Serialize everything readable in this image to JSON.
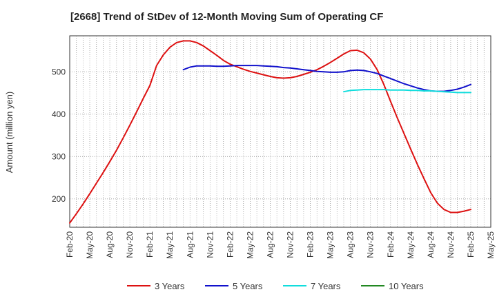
{
  "chart_data": {
    "type": "line",
    "title": "[2668]  Trend of StDev of 12-Month Moving Sum of Operating CF",
    "ylabel": "Amount (million yen)",
    "xlabel": "",
    "x_tick_labels": [
      "Feb-20",
      "May-20",
      "Aug-20",
      "Nov-20",
      "Feb-21",
      "May-21",
      "Aug-21",
      "Nov-21",
      "Feb-22",
      "May-22",
      "Aug-22",
      "Nov-22",
      "Feb-23",
      "May-23",
      "Aug-23",
      "Nov-23",
      "Feb-24",
      "May-24",
      "Aug-24",
      "Nov-24",
      "Feb-25",
      "May-25"
    ],
    "y_ticks": [
      200,
      300,
      400,
      500
    ],
    "ylim": [
      133,
      585
    ],
    "grid": true,
    "legend_position": "bottom",
    "series": [
      {
        "name": "3 Years",
        "color": "#dd1111",
        "x": [
          "2020-02",
          "2020-03",
          "2020-04",
          "2020-05",
          "2020-06",
          "2020-07",
          "2020-08",
          "2020-09",
          "2020-10",
          "2020-11",
          "2020-12",
          "2021-01",
          "2021-02",
          "2021-03",
          "2021-04",
          "2021-05",
          "2021-06",
          "2021-07",
          "2021-08",
          "2021-09",
          "2021-10",
          "2021-11",
          "2021-12",
          "2022-01",
          "2022-02",
          "2022-03",
          "2022-04",
          "2022-05",
          "2022-06",
          "2022-07",
          "2022-08",
          "2022-09",
          "2022-10",
          "2022-11",
          "2022-12",
          "2023-01",
          "2023-02",
          "2023-03",
          "2023-04",
          "2023-05",
          "2023-06",
          "2023-07",
          "2023-08",
          "2023-09",
          "2023-10",
          "2023-11",
          "2023-12",
          "2024-01",
          "2024-02",
          "2024-03",
          "2024-04",
          "2024-05",
          "2024-06",
          "2024-07",
          "2024-08",
          "2024-09",
          "2024-10",
          "2024-11",
          "2024-12",
          "2025-01",
          "2025-02"
        ],
        "values": [
          143,
          165,
          188,
          212,
          237,
          262,
          288,
          315,
          344,
          374,
          405,
          437,
          468,
          515,
          540,
          558,
          569,
          573,
          573,
          569,
          561,
          550,
          539,
          527,
          518,
          512,
          506,
          501,
          497,
          493,
          489,
          486,
          485,
          486,
          489,
          494,
          499,
          505,
          513,
          522,
          532,
          542,
          550,
          551,
          545,
          530,
          505,
          470,
          430,
          392,
          355,
          318,
          282,
          248,
          215,
          190,
          175,
          168,
          168,
          171,
          175
        ]
      },
      {
        "name": "5 Years",
        "color": "#1111cc",
        "x": [
          "2021-07",
          "2021-08",
          "2021-09",
          "2021-10",
          "2021-11",
          "2021-12",
          "2022-01",
          "2022-02",
          "2022-03",
          "2022-04",
          "2022-05",
          "2022-06",
          "2022-07",
          "2022-08",
          "2022-09",
          "2022-10",
          "2022-11",
          "2022-12",
          "2023-01",
          "2023-02",
          "2023-03",
          "2023-04",
          "2023-05",
          "2023-06",
          "2023-07",
          "2023-08",
          "2023-09",
          "2023-10",
          "2023-11",
          "2023-12",
          "2024-01",
          "2024-02",
          "2024-03",
          "2024-04",
          "2024-05",
          "2024-06",
          "2024-07",
          "2024-08",
          "2024-09",
          "2024-10",
          "2024-11",
          "2024-12",
          "2025-01",
          "2025-02"
        ],
        "values": [
          505,
          511,
          514,
          514,
          514,
          513,
          513,
          514,
          515,
          515,
          515,
          515,
          514,
          513,
          512,
          510,
          509,
          507,
          505,
          503,
          501,
          500,
          499,
          499,
          500,
          503,
          504,
          503,
          500,
          496,
          490,
          484,
          478,
          472,
          467,
          462,
          458,
          455,
          454,
          454,
          456,
          459,
          464,
          470
        ]
      },
      {
        "name": "7 Years",
        "color": "#11dddd",
        "x": [
          "2023-07",
          "2023-08",
          "2023-09",
          "2023-10",
          "2023-11",
          "2023-12",
          "2024-01",
          "2024-02",
          "2024-03",
          "2024-04",
          "2024-05",
          "2024-06",
          "2024-07",
          "2024-08",
          "2024-09",
          "2024-10",
          "2024-11",
          "2024-12",
          "2025-01",
          "2025-02"
        ],
        "values": [
          453,
          456,
          457,
          458,
          458,
          458,
          458,
          457,
          457,
          457,
          456,
          456,
          455,
          455,
          454,
          453,
          452,
          451,
          451,
          451
        ]
      },
      {
        "name": "10 Years",
        "color": "#228822",
        "x": [],
        "values": []
      }
    ]
  }
}
